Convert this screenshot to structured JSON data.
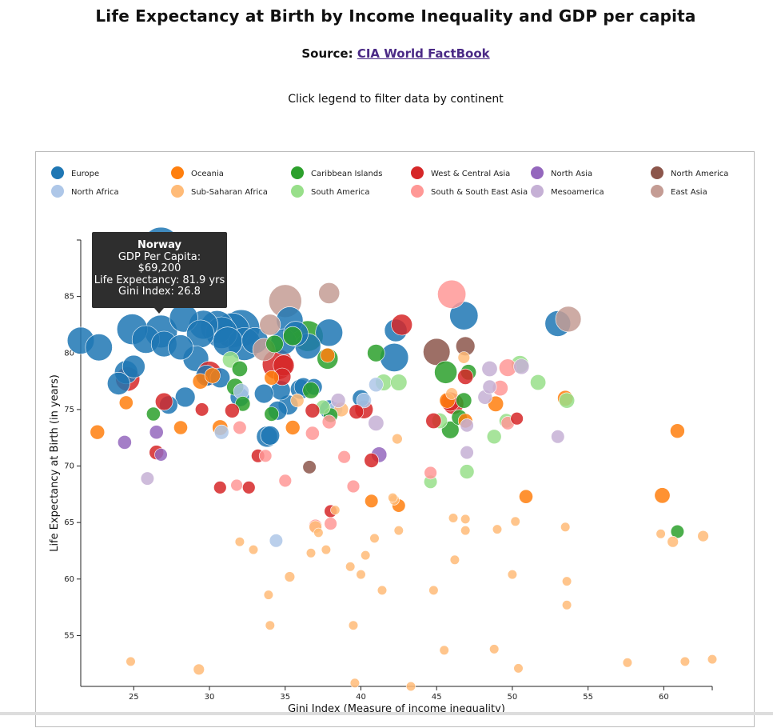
{
  "header": {
    "title": "Life Expectancy at Birth by Income Inequality and GDP per capita",
    "source_prefix": "Source: ",
    "source_link": "CIA World FactBook",
    "hint": "Click legend to filter data by continent"
  },
  "tooltip": {
    "name": "Norway",
    "gdp_label": "GDP Per Capita:",
    "gdp_value": "$69,200",
    "life_label": "Life Expectancy: 81.9 yrs",
    "gini_label": "Gini Index: 26.8"
  },
  "chart_data": {
    "type": "scatter",
    "title": "Life Expectancy at Birth by Income Inequality and GDP per capita",
    "xlabel": "Gini Index (Measure of income inequality)",
    "ylabel": "Life Expectancy at Birth (in years)",
    "xlim": [
      21.5,
      63.2
    ],
    "ylim": [
      50.5,
      90
    ],
    "xticks": [
      25,
      30,
      35,
      40,
      45,
      50,
      55,
      60
    ],
    "yticks": [
      55,
      60,
      65,
      70,
      75,
      80,
      85
    ],
    "grid": false,
    "legend_position": "top",
    "legend": [
      {
        "name": "Europe",
        "color": "#1f77b4"
      },
      {
        "name": "North Africa",
        "color": "#aec7e8"
      },
      {
        "name": "Oceania",
        "color": "#ff7f0e"
      },
      {
        "name": "Sub-Saharan Africa",
        "color": "#ffbb78"
      },
      {
        "name": "Caribbean Islands",
        "color": "#2ca02c"
      },
      {
        "name": "South America",
        "color": "#98df8a"
      },
      {
        "name": "West & Central Asia",
        "color": "#d62728"
      },
      {
        "name": "South & South East Asia",
        "color": "#ff9896"
      },
      {
        "name": "North Asia",
        "color": "#9467bd"
      },
      {
        "name": "Mesoamerica",
        "color": "#c5b0d5"
      },
      {
        "name": "North America",
        "color": "#8c564b"
      },
      {
        "name": "East Asia",
        "color": "#c49c94"
      }
    ],
    "size_encoding": "GDP per capita",
    "series": [
      {
        "name": "Europe",
        "points": [
          [
            21.5,
            81.1,
            45000
          ],
          [
            22.7,
            80.5,
            45000
          ],
          [
            24.0,
            77.3,
            30000
          ],
          [
            24.5,
            78.3,
            32000
          ],
          [
            25.0,
            78.8,
            30000
          ],
          [
            24.9,
            82.1,
            60000
          ],
          [
            25.8,
            81.2,
            48000
          ],
          [
            26.8,
            81.9,
            69200
          ],
          [
            26.8,
            89.5,
            90000
          ],
          [
            27.0,
            80.8,
            40000
          ],
          [
            27.3,
            75.4,
            18000
          ],
          [
            28.1,
            80.5,
            38000
          ],
          [
            28.3,
            83.1,
            50000
          ],
          [
            28.4,
            76.1,
            22000
          ],
          [
            29.1,
            79.5,
            40000
          ],
          [
            29.4,
            81.7,
            48000
          ],
          [
            29.6,
            82.5,
            52000
          ],
          [
            29.8,
            78.0,
            25000
          ],
          [
            30.5,
            82.3,
            70000
          ],
          [
            30.8,
            81.8,
            65000
          ],
          [
            30.7,
            77.8,
            22000
          ],
          [
            31.2,
            81.0,
            55000
          ],
          [
            31.5,
            82.0,
            80000
          ],
          [
            32.0,
            76.1,
            20000
          ],
          [
            32.1,
            82.2,
            90000
          ],
          [
            32.3,
            80.8,
            70000
          ],
          [
            33.0,
            81.1,
            42000
          ],
          [
            33.6,
            76.4,
            20000
          ],
          [
            33.8,
            72.6,
            25000
          ],
          [
            34.0,
            72.7,
            20000
          ],
          [
            34.5,
            74.9,
            20000
          ],
          [
            34.7,
            76.7,
            21000
          ],
          [
            34.9,
            81.0,
            40000
          ],
          [
            35.2,
            75.4,
            22000
          ],
          [
            35.3,
            82.9,
            44000
          ],
          [
            35.7,
            81.7,
            38000
          ],
          [
            36.5,
            80.6,
            40000
          ],
          [
            36.0,
            76.8,
            22000
          ],
          [
            36.2,
            77.0,
            18000
          ],
          [
            37.9,
            75.0,
            20000
          ],
          [
            37.9,
            81.8,
            46000
          ],
          [
            40.0,
            76.0,
            15000
          ],
          [
            42.2,
            79.6,
            50000
          ],
          [
            42.3,
            82.0,
            30000
          ],
          [
            46.8,
            83.3,
            50000
          ],
          [
            53.0,
            82.6,
            40000
          ],
          [
            36.9,
            77.0,
            14000
          ]
        ]
      },
      {
        "name": "North Africa",
        "points": [
          [
            30.8,
            73.0,
            10000
          ],
          [
            32.1,
            76.6,
            12000
          ],
          [
            34.4,
            63.4,
            8000
          ],
          [
            38.3,
            75.0,
            11000
          ],
          [
            40.2,
            75.8,
            11000
          ],
          [
            41.0,
            77.2,
            10000
          ]
        ]
      },
      {
        "name": "Oceania",
        "points": [
          [
            22.6,
            73.0,
            10000
          ],
          [
            24.5,
            75.6,
            9000
          ],
          [
            28.1,
            73.4,
            9000
          ],
          [
            29.4,
            77.5,
            12000
          ],
          [
            30.2,
            78.0,
            12000
          ],
          [
            30.7,
            73.4,
            12000
          ],
          [
            34.1,
            77.8,
            10000
          ],
          [
            35.5,
            73.4,
            10000
          ],
          [
            37.8,
            79.8,
            10000
          ],
          [
            40.7,
            66.9,
            8000
          ],
          [
            42.5,
            66.5,
            8000
          ],
          [
            45.7,
            75.8,
            12000
          ],
          [
            46.9,
            74.0,
            10000
          ],
          [
            48.9,
            75.5,
            12000
          ],
          [
            50.9,
            67.3,
            9000
          ],
          [
            53.5,
            76.0,
            12000
          ],
          [
            59.9,
            67.4,
            12000
          ],
          [
            60.9,
            73.1,
            10000
          ]
        ]
      },
      {
        "name": "Sub-Saharan Africa",
        "points": [
          [
            24.8,
            52.7,
            3000
          ],
          [
            29.3,
            52.0,
            5000
          ],
          [
            32.0,
            63.3,
            3000
          ],
          [
            32.9,
            62.6,
            3000
          ],
          [
            33.9,
            58.6,
            3000
          ],
          [
            34.0,
            55.9,
            3000
          ],
          [
            35.3,
            60.2,
            4000
          ],
          [
            35.8,
            75.8,
            8000
          ],
          [
            36.7,
            62.3,
            3000
          ],
          [
            37.0,
            64.6,
            7000
          ],
          [
            37.2,
            64.1,
            3000
          ],
          [
            37.7,
            62.6,
            3000
          ],
          [
            38.3,
            66.1,
            3000
          ],
          [
            38.7,
            75.0,
            10000
          ],
          [
            39.3,
            61.1,
            3000
          ],
          [
            39.5,
            55.9,
            3000
          ],
          [
            39.6,
            50.8,
            3000
          ],
          [
            40.0,
            60.4,
            3000
          ],
          [
            40.3,
            62.1,
            3000
          ],
          [
            40.9,
            63.6,
            3000
          ],
          [
            41.4,
            59.0,
            3000
          ],
          [
            42.2,
            67.0,
            4000
          ],
          [
            42.4,
            72.4,
            4000
          ],
          [
            42.5,
            64.3,
            3000
          ],
          [
            43.3,
            50.5,
            3000
          ],
          [
            44.8,
            59.0,
            3000
          ],
          [
            45.5,
            53.7,
            3000
          ],
          [
            46.0,
            76.4,
            6000
          ],
          [
            46.1,
            65.4,
            3000
          ],
          [
            46.2,
            61.7,
            3000
          ],
          [
            46.8,
            79.6,
            6000
          ],
          [
            46.9,
            65.3,
            3000
          ],
          [
            46.9,
            64.3,
            3000
          ],
          [
            48.8,
            53.8,
            3000
          ],
          [
            49.0,
            64.4,
            3000
          ],
          [
            50.0,
            60.4,
            3000
          ],
          [
            50.2,
            65.1,
            3000
          ],
          [
            50.4,
            52.1,
            3000
          ],
          [
            53.5,
            64.6,
            3000
          ],
          [
            53.6,
            59.8,
            3000
          ],
          [
            53.6,
            57.7,
            3000
          ],
          [
            57.6,
            52.6,
            3000
          ],
          [
            59.8,
            64.0,
            3000
          ],
          [
            60.6,
            63.3,
            5000
          ],
          [
            61.4,
            52.7,
            3000
          ],
          [
            62.6,
            63.8,
            5000
          ],
          [
            63.2,
            52.9,
            3000
          ],
          [
            42.1,
            67.2,
            3000
          ]
        ]
      },
      {
        "name": "Caribbean Islands",
        "points": [
          [
            26.3,
            74.6,
            9000
          ],
          [
            31.7,
            77.0,
            15000
          ],
          [
            32.0,
            78.6,
            12000
          ],
          [
            32.2,
            75.5,
            11000
          ],
          [
            34.1,
            74.6,
            10000
          ],
          [
            34.3,
            80.8,
            16000
          ],
          [
            35.5,
            81.5,
            20000
          ],
          [
            36.5,
            81.5,
            60000
          ],
          [
            36.7,
            76.7,
            14000
          ],
          [
            37.8,
            79.5,
            25000
          ],
          [
            38.0,
            74.5,
            10000
          ],
          [
            41.0,
            80.0,
            16000
          ],
          [
            45.6,
            78.3,
            30000
          ],
          [
            45.9,
            73.2,
            16000
          ],
          [
            46.5,
            74.3,
            12000
          ],
          [
            46.8,
            75.8,
            12000
          ],
          [
            47.1,
            78.3,
            12000
          ],
          [
            60.9,
            64.2,
            8000
          ]
        ]
      },
      {
        "name": "South America",
        "points": [
          [
            37.5,
            75.2,
            10000
          ],
          [
            41.5,
            77.4,
            14000
          ],
          [
            42.5,
            77.4,
            14000
          ],
          [
            44.6,
            68.6,
            8000
          ],
          [
            45.2,
            74.0,
            12000
          ],
          [
            47.0,
            69.5,
            10000
          ],
          [
            48.8,
            72.6,
            10000
          ],
          [
            49.6,
            74.0,
            10000
          ],
          [
            50.5,
            79.0,
            16000
          ],
          [
            51.7,
            77.4,
            12000
          ],
          [
            53.6,
            75.8,
            12000
          ],
          [
            31.4,
            79.4,
            14000
          ]
        ]
      },
      {
        "name": "West & Central Asia",
        "points": [
          [
            24.6,
            77.7,
            35000
          ],
          [
            26.5,
            71.2,
            10000
          ],
          [
            27.0,
            75.7,
            16000
          ],
          [
            29.5,
            75.0,
            8000
          ],
          [
            30.0,
            78.2,
            35000
          ],
          [
            30.7,
            68.1,
            7000
          ],
          [
            31.5,
            74.9,
            10000
          ],
          [
            32.6,
            68.1,
            7000
          ],
          [
            33.2,
            70.9,
            8000
          ],
          [
            34.5,
            79.0,
            60000
          ],
          [
            34.9,
            78.9,
            25000
          ],
          [
            34.8,
            77.9,
            16000
          ],
          [
            36.8,
            74.9,
            10000
          ],
          [
            38.0,
            66.0,
            7000
          ],
          [
            39.7,
            74.8,
            10000
          ],
          [
            40.2,
            75.0,
            18000
          ],
          [
            40.7,
            70.5,
            10000
          ],
          [
            42.7,
            82.5,
            25000
          ],
          [
            44.8,
            74.0,
            12000
          ],
          [
            45.9,
            75.7,
            20000
          ],
          [
            46.1,
            75.5,
            25000
          ],
          [
            46.9,
            77.9,
            12000
          ],
          [
            50.3,
            74.2,
            7000
          ]
        ]
      },
      {
        "name": "South & South East Asia",
        "points": [
          [
            31.8,
            68.3,
            6000
          ],
          [
            32.0,
            73.4,
            8000
          ],
          [
            33.7,
            70.9,
            7000
          ],
          [
            35.0,
            68.7,
            7000
          ],
          [
            36.8,
            72.9,
            9000
          ],
          [
            37.0,
            64.7,
            8000
          ],
          [
            37.9,
            73.9,
            9000
          ],
          [
            38.0,
            64.9,
            7000
          ],
          [
            38.9,
            70.8,
            7000
          ],
          [
            39.5,
            68.2,
            7000
          ],
          [
            44.6,
            69.4,
            7000
          ],
          [
            46.0,
            85.2,
            50000
          ],
          [
            49.2,
            76.9,
            12000
          ],
          [
            49.7,
            73.8,
            8000
          ],
          [
            49.7,
            78.7,
            16000
          ]
        ]
      },
      {
        "name": "North Asia",
        "points": [
          [
            24.4,
            72.1,
            9000
          ],
          [
            26.5,
            73.0,
            9000
          ],
          [
            26.8,
            71.0,
            7000
          ],
          [
            41.2,
            71.0,
            12000
          ]
        ]
      },
      {
        "name": "Mesoamerica",
        "points": [
          [
            25.9,
            68.9,
            8000
          ],
          [
            38.5,
            75.8,
            10000
          ],
          [
            41.0,
            73.8,
            12000
          ],
          [
            47.0,
            71.2,
            8000
          ],
          [
            47.0,
            73.6,
            8000
          ],
          [
            48.2,
            76.1,
            10000
          ],
          [
            48.5,
            78.6,
            12000
          ],
          [
            50.6,
            78.8,
            12000
          ],
          [
            53.0,
            72.6,
            8000
          ],
          [
            48.5,
            77.0,
            9000
          ]
        ]
      },
      {
        "name": "North America",
        "points": [
          [
            36.6,
            69.9,
            8000
          ],
          [
            45.0,
            80.1,
            45000
          ],
          [
            46.9,
            80.6,
            20000
          ]
        ]
      },
      {
        "name": "East Asia",
        "points": [
          [
            33.6,
            80.3,
            30000
          ],
          [
            34.0,
            82.5,
            25000
          ],
          [
            35.0,
            84.6,
            70000
          ],
          [
            37.9,
            85.3,
            25000
          ],
          [
            53.7,
            83.0,
            40000
          ]
        ]
      }
    ]
  }
}
